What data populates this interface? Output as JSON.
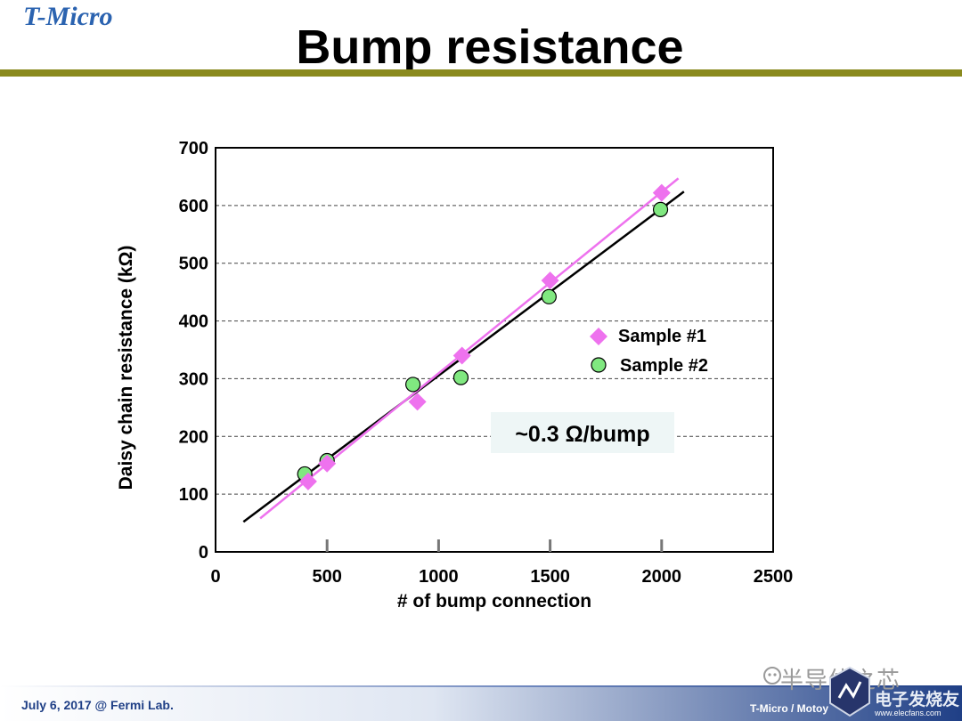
{
  "header": {
    "logo": "T-Micro",
    "title": "Bump resistance"
  },
  "chart_data": {
    "type": "scatter",
    "xlabel": "# of bump connection",
    "ylabel": "Daisy chain resistance (kΩ)",
    "xlim": [
      0,
      2500
    ],
    "ylim": [
      0,
      700
    ],
    "xticks": [
      0,
      500,
      1000,
      1500,
      2000,
      2500
    ],
    "yticks": [
      0,
      100,
      200,
      300,
      400,
      500,
      600,
      700
    ],
    "grid": "horizontal dashed",
    "legend": "right",
    "annotation": "~0.3 Ω/bump",
    "series": [
      {
        "name": "Sample #1",
        "marker": "diamond",
        "color": "#ee72ee",
        "points": [
          [
            415,
            122
          ],
          [
            500,
            153
          ],
          [
            905,
            260
          ],
          [
            1105,
            340
          ],
          [
            1500,
            470
          ],
          [
            2000,
            622
          ]
        ],
        "fit": [
          [
            200,
            58
          ],
          [
            2075,
            647
          ]
        ]
      },
      {
        "name": "Sample #2",
        "marker": "circle",
        "color": "#80e880",
        "points": [
          [
            400,
            135
          ],
          [
            500,
            158
          ],
          [
            885,
            290
          ],
          [
            1100,
            302
          ],
          [
            1495,
            442
          ],
          [
            1995,
            593
          ]
        ],
        "fit": [
          [
            125,
            52
          ],
          [
            2100,
            624
          ]
        ]
      }
    ]
  },
  "footer": {
    "left": "July 6, 2017 @ Fermi Lab.",
    "right": "T-Micro / Motoy",
    "watermark": "半导体之芯",
    "watermark2": "电子发烧友",
    "watermark2_url": "www.elecfans.com"
  }
}
